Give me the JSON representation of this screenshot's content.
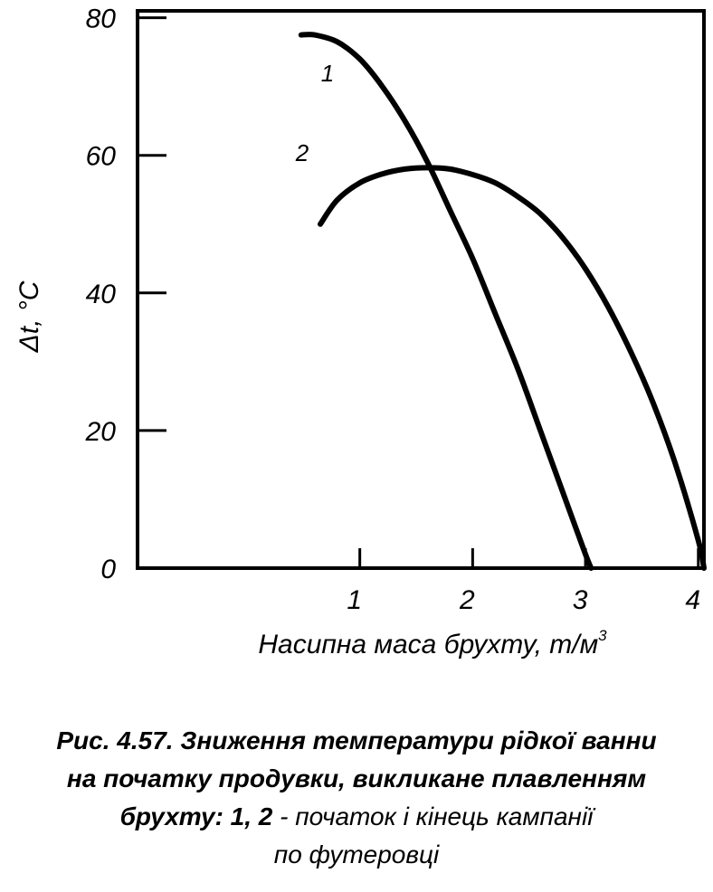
{
  "chart_data": {
    "type": "line",
    "xlabel": "Насипна маса брухту, т/м",
    "xlabel_sup": "3",
    "ylabel": "Δt, °С",
    "xlim": [
      -0.97,
      4.05
    ],
    "ylim": [
      0,
      81
    ],
    "x_ticks": [
      1,
      2,
      3,
      4
    ],
    "y_ticks": [
      0,
      20,
      40,
      60,
      80
    ],
    "grid": false,
    "series": [
      {
        "name": "1",
        "x": [
          0.48,
          0.6,
          0.8,
          1.0,
          1.2,
          1.4,
          1.6,
          1.8,
          2.0,
          2.2,
          2.4,
          2.6,
          2.8,
          3.0,
          3.05
        ],
        "y": [
          77.5,
          77.5,
          76.5,
          74,
          70,
          65,
          59,
          52,
          45,
          37,
          29,
          20,
          11,
          2,
          0
        ]
      },
      {
        "name": "2",
        "x": [
          0.65,
          0.8,
          1.0,
          1.2,
          1.4,
          1.6,
          1.8,
          2.0,
          2.2,
          2.4,
          2.6,
          2.8,
          3.0,
          3.2,
          3.4,
          3.6,
          3.8,
          4.0,
          4.05
        ],
        "y": [
          50,
          53.5,
          56,
          57.3,
          58,
          58.2,
          58,
          57.2,
          56,
          54,
          51.5,
          48,
          43.5,
          38,
          31.5,
          24,
          15,
          4,
          0
        ]
      }
    ]
  }
}
